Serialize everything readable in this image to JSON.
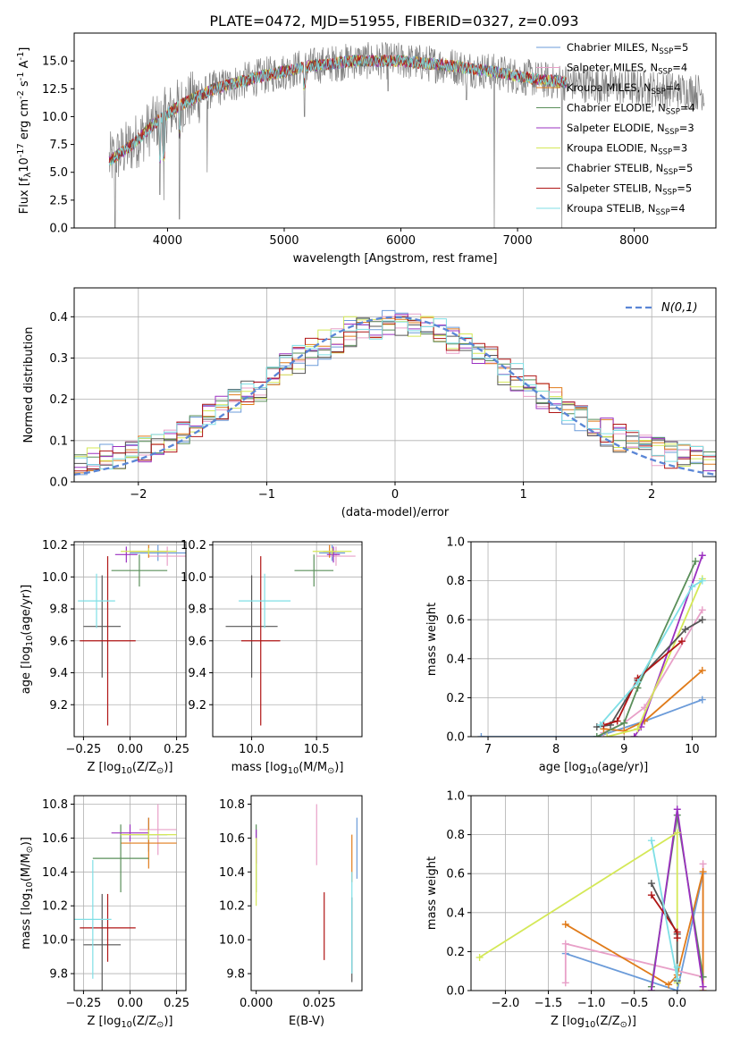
{
  "figure_title": "PLATE=0472, MJD=51955, FIBERID=0327, z=0.093",
  "models": [
    {
      "name": "Chabrier MILES, N$_{SSP}$=5",
      "imf": "Chabrier",
      "lib": "MILES",
      "nssp": "5",
      "color": "#6b9bd9"
    },
    {
      "name": "Salpeter MILES, N$_{SSP}$=4",
      "imf": "Salpeter",
      "lib": "MILES",
      "nssp": "4",
      "color": "#e8a0c8"
    },
    {
      "name": "Kroupa MILES, N$_{SSP}$=4",
      "imf": "Kroupa",
      "lib": "MILES",
      "nssp": "4",
      "color": "#e07b1a"
    },
    {
      "name": "Chabrier ELODIE, N$_{SSP}$=4",
      "imf": "Chabrier",
      "lib": "ELODIE",
      "nssp": "4",
      "color": "#5a8f5a"
    },
    {
      "name": "Salpeter ELODIE, N$_{SSP}$=3",
      "imf": "Salpeter",
      "lib": "ELODIE",
      "nssp": "3",
      "color": "#9b30c0"
    },
    {
      "name": "Kroupa ELODIE, N$_{SSP}$=3",
      "imf": "Kroupa",
      "lib": "ELODIE",
      "nssp": "3",
      "color": "#d4e857"
    },
    {
      "name": "Chabrier STELIB, N$_{SSP}$=5",
      "imf": "Chabrier",
      "lib": "STELIB",
      "nssp": "5",
      "color": "#555555"
    },
    {
      "name": "Salpeter STELIB, N$_{SSP}$=5",
      "imf": "Salpeter",
      "lib": "STELIB",
      "nssp": "5",
      "color": "#b01515"
    },
    {
      "name": "Kroupa STELIB, N$_{SSP}$=4",
      "imf": "Kroupa",
      "lib": "STELIB",
      "nssp": "4",
      "color": "#7fdfe6"
    }
  ],
  "chart_data": [
    {
      "id": "spectrum",
      "type": "line",
      "xlabel": "wavelength [Angstrom, rest frame]",
      "ylabel": "Flux [f$_\\lambda$10$^{-17}$ erg cm$^{-2}$ s$^{-1}$ A$^{-1}$]",
      "xlim": [
        3200,
        8700
      ],
      "ylim": [
        0,
        17.5
      ],
      "xticks": [
        4000,
        5000,
        6000,
        7000,
        8000
      ],
      "yticks": [
        0.0,
        2.5,
        5.0,
        7.5,
        10.0,
        12.5,
        15.0
      ],
      "grid": false,
      "legend": "upper right",
      "data_color": "#808080",
      "x_range_data": [
        3500,
        8600
      ],
      "x_range_model": [
        3500,
        7420
      ],
      "continuum": [
        [
          3500,
          6.0
        ],
        [
          3700,
          7.5
        ],
        [
          3900,
          9.5
        ],
        [
          4100,
          11.0
        ],
        [
          4400,
          12.5
        ],
        [
          4800,
          13.6
        ],
        [
          5200,
          14.5
        ],
        [
          5600,
          15.0
        ],
        [
          6000,
          15.0
        ],
        [
          6400,
          14.6
        ],
        [
          6800,
          14.0
        ],
        [
          7200,
          13.3
        ],
        [
          7600,
          12.9
        ],
        [
          8000,
          12.6
        ],
        [
          8600,
          12.2
        ]
      ],
      "data_dips": [
        [
          3550,
          0.0
        ],
        [
          3934,
          3.0
        ],
        [
          3968,
          2.5
        ],
        [
          4102,
          0.8
        ],
        [
          4340,
          5.0
        ],
        [
          5175,
          10.0
        ],
        [
          5890,
          12.3
        ],
        [
          6563,
          11.5
        ],
        [
          6800,
          0.0
        ],
        [
          7380,
          0.0
        ]
      ]
    },
    {
      "id": "residuals",
      "type": "histogram",
      "xlabel": "(data-model)/error",
      "ylabel": "Normed distribution",
      "xlim": [
        -2.5,
        2.5
      ],
      "ylim": [
        0.0,
        0.47
      ],
      "xticks": [
        -2,
        -1,
        0,
        1,
        2
      ],
      "yticks": [
        0.0,
        0.1,
        0.2,
        0.3,
        0.4
      ],
      "grid": true,
      "legend_label": "$\\mathcal{N}(0,1)$",
      "gauss_color": "#5a86d6",
      "bin_width": 0.1
    },
    {
      "id": "age_vs_Z",
      "type": "scatter",
      "xlabel": "Z [log$_{10}$(Z/Z$_\\odot$)]",
      "ylabel": "age  [log$_{10}$(age/yr)]",
      "xlim": [
        -0.3,
        0.3
      ],
      "ylim": [
        9.0,
        10.22
      ],
      "xticks": [
        -0.25,
        0.0,
        0.25
      ],
      "yticks": [
        9.2,
        9.4,
        9.6,
        9.8,
        10.0,
        10.2
      ],
      "grid": true,
      "points": [
        {
          "m": 0,
          "x": 0.15,
          "y": 10.15,
          "ex": 0.15,
          "ey": 0.05
        },
        {
          "m": 1,
          "x": 0.2,
          "y": 10.13,
          "ex": 0.1,
          "ey": 0.06
        },
        {
          "m": 2,
          "x": 0.1,
          "y": 10.16,
          "ex": 0.1,
          "ey": 0.04
        },
        {
          "m": 3,
          "x": 0.05,
          "y": 10.04,
          "ex": 0.15,
          "ey": 0.1
        },
        {
          "m": 4,
          "x": -0.02,
          "y": 10.14,
          "ex": 0.06,
          "ey": 0.05
        },
        {
          "m": 5,
          "x": 0.1,
          "y": 10.16,
          "ex": 0.15,
          "ey": 0.02
        },
        {
          "m": 6,
          "x": -0.15,
          "y": 9.69,
          "ex": 0.1,
          "ey": 0.32
        },
        {
          "m": 7,
          "x": -0.12,
          "y": 9.6,
          "ex": 0.15,
          "ey": 0.53
        },
        {
          "m": 8,
          "x": -0.18,
          "y": 9.85,
          "ex": 0.1,
          "ey": 0.17
        }
      ]
    },
    {
      "id": "age_vs_mass",
      "type": "scatter",
      "xlabel": "mass [log$_{10}$(M/M$_\\odot$)]",
      "ylabel": "",
      "xlim": [
        9.7,
        10.85
      ],
      "ylim": [
        9.0,
        10.22
      ],
      "xticks": [
        10.0,
        10.5
      ],
      "yticks": [
        9.2,
        9.4,
        9.6,
        9.8,
        10.0,
        10.2
      ],
      "grid": true,
      "points": [
        {
          "m": 0,
          "x": 10.62,
          "y": 10.15,
          "ex": 0.1,
          "ey": 0.05
        },
        {
          "m": 1,
          "x": 10.65,
          "y": 10.13,
          "ex": 0.15,
          "ey": 0.06
        },
        {
          "m": 2,
          "x": 10.6,
          "y": 10.16,
          "ex": 0.05,
          "ey": 0.04
        },
        {
          "m": 3,
          "x": 10.48,
          "y": 10.04,
          "ex": 0.15,
          "ey": 0.1
        },
        {
          "m": 4,
          "x": 10.63,
          "y": 10.14,
          "ex": 0.05,
          "ey": 0.05
        },
        {
          "m": 5,
          "x": 10.62,
          "y": 10.16,
          "ex": 0.15,
          "ey": 0.02
        },
        {
          "m": 6,
          "x": 10.0,
          "y": 9.69,
          "ex": 0.2,
          "ey": 0.32
        },
        {
          "m": 7,
          "x": 10.07,
          "y": 9.6,
          "ex": 0.15,
          "ey": 0.53
        },
        {
          "m": 8,
          "x": 10.1,
          "y": 9.85,
          "ex": 0.2,
          "ey": 0.17
        }
      ]
    },
    {
      "id": "weight_vs_age",
      "type": "line",
      "xlabel": "age  [log$_{10}$(age/yr)]",
      "ylabel": "mass weight",
      "xlim": [
        6.75,
        10.35
      ],
      "ylim": [
        0.0,
        1.0
      ],
      "xticks": [
        7,
        8,
        9,
        10
      ],
      "yticks": [
        0.0,
        0.2,
        0.4,
        0.6,
        0.8,
        1.0
      ],
      "grid": true,
      "series": [
        {
          "m": 0,
          "x": [
            6.9,
            8.6,
            9.3,
            10.15
          ],
          "y": [
            0.0,
            0.0,
            0.08,
            0.19
          ]
        },
        {
          "m": 1,
          "x": [
            8.7,
            9.0,
            9.3,
            10.15
          ],
          "y": [
            0.02,
            0.07,
            0.15,
            0.65
          ]
        },
        {
          "m": 2,
          "x": [
            8.7,
            9.0,
            9.3,
            10.15
          ],
          "y": [
            0.04,
            0.03,
            0.08,
            0.34
          ]
        },
        {
          "m": 3,
          "x": [
            8.6,
            9.0,
            9.2,
            10.05
          ],
          "y": [
            0.0,
            0.07,
            0.25,
            0.9
          ]
        },
        {
          "m": 4,
          "x": [
            9.15,
            9.25,
            10.15
          ],
          "y": [
            0.0,
            0.05,
            0.93
          ]
        },
        {
          "m": 5,
          "x": [
            8.75,
            9.2,
            10.15
          ],
          "y": [
            0.0,
            0.04,
            0.81
          ]
        },
        {
          "m": 6,
          "x": [
            8.6,
            8.8,
            9.2,
            9.9,
            10.15
          ],
          "y": [
            0.05,
            0.06,
            0.29,
            0.55,
            0.6
          ]
        },
        {
          "m": 7,
          "x": [
            8.7,
            8.9,
            9.2,
            9.85
          ],
          "y": [
            0.06,
            0.08,
            0.3,
            0.49
          ]
        },
        {
          "m": 8,
          "x": [
            8.65,
            9.2,
            10.0,
            10.15
          ],
          "y": [
            0.06,
            0.28,
            0.77,
            0.8
          ]
        }
      ]
    },
    {
      "id": "mass_vs_Z",
      "type": "scatter",
      "xlabel": "Z [log$_{10}$(Z/Z$_\\odot$)]",
      "ylabel": "mass [log$_{10}$(M/M$_\\odot$)]",
      "xlim": [
        -0.3,
        0.3
      ],
      "ylim": [
        9.7,
        10.85
      ],
      "xticks": [
        -0.25,
        0.0,
        0.25
      ],
      "yticks": [
        9.8,
        10.0,
        10.2,
        10.4,
        10.6,
        10.8
      ],
      "grid": true,
      "points": [
        {
          "m": 0,
          "x": 0.1,
          "y": 10.62,
          "ex": 0.1,
          "ey": 0.1
        },
        {
          "m": 1,
          "x": 0.15,
          "y": 10.65,
          "ex": 0.1,
          "ey": 0.15
        },
        {
          "m": 2,
          "x": 0.1,
          "y": 10.57,
          "ex": 0.15,
          "ey": 0.15
        },
        {
          "m": 3,
          "x": -0.05,
          "y": 10.48,
          "ex": 0.15,
          "ey": 0.2
        },
        {
          "m": 4,
          "x": 0.0,
          "y": 10.63,
          "ex": 0.1,
          "ey": 0.05
        },
        {
          "m": 5,
          "x": 0.1,
          "y": 10.62,
          "ex": 0.15,
          "ey": 0.03
        },
        {
          "m": 6,
          "x": -0.15,
          "y": 9.97,
          "ex": 0.1,
          "ey": 0.3
        },
        {
          "m": 7,
          "x": -0.12,
          "y": 10.07,
          "ex": 0.15,
          "ey": 0.2
        },
        {
          "m": 8,
          "x": -0.2,
          "y": 10.12,
          "ex": 0.1,
          "ey": 0.35
        }
      ]
    },
    {
      "id": "mass_vs_ebv",
      "type": "errorbar",
      "xlabel": "E(B-V)",
      "ylabel": "",
      "xlim": [
        -0.002,
        0.042
      ],
      "ylim": [
        9.7,
        10.85
      ],
      "xticks": [
        0.0,
        0.025
      ],
      "yticks": [
        9.8,
        10.0,
        10.2,
        10.4,
        10.6,
        10.8
      ],
      "grid": false,
      "points": [
        {
          "m": 0,
          "x": 0.04,
          "y": 10.54,
          "ey": 0.18
        },
        {
          "m": 1,
          "x": 0.024,
          "y": 10.62,
          "ey": 0.18
        },
        {
          "m": 2,
          "x": 0.038,
          "y": 10.48,
          "ey": 0.14
        },
        {
          "m": 3,
          "x": 0.0,
          "y": 10.48,
          "ey": 0.2
        },
        {
          "m": 4,
          "x": 0.0,
          "y": 10.55,
          "ey": 0.1
        },
        {
          "m": 5,
          "x": 0.0,
          "y": 10.4,
          "ey": 0.2
        },
        {
          "m": 6,
          "x": 0.038,
          "y": 10.0,
          "ey": 0.25
        },
        {
          "m": 7,
          "x": 0.027,
          "y": 10.08,
          "ey": 0.2
        },
        {
          "m": 8,
          "x": 0.038,
          "y": 10.1,
          "ey": 0.3
        }
      ]
    },
    {
      "id": "weight_vs_Z",
      "type": "line",
      "xlabel": "Z [log$_{10}$(Z/Z$_\\odot$)]",
      "ylabel": "mass weight",
      "xlim": [
        -2.4,
        0.45
      ],
      "ylim": [
        0.0,
        1.0
      ],
      "xticks": [
        -2.0,
        -1.5,
        -1.0,
        -0.5,
        0.0
      ],
      "yticks": [
        0.0,
        0.2,
        0.4,
        0.6,
        0.8,
        1.0
      ],
      "grid": true,
      "series": [
        {
          "m": 0,
          "x": [
            -1.3,
            0.0,
            0.3
          ],
          "y": [
            0.19,
            0.0,
            0.6
          ]
        },
        {
          "m": 1,
          "x": [
            -1.3,
            -1.3,
            0.3,
            0.3
          ],
          "y": [
            0.04,
            0.24,
            0.07,
            0.65
          ]
        },
        {
          "m": 2,
          "x": [
            -1.3,
            -0.1,
            0.0,
            0.3,
            0.3
          ],
          "y": [
            0.34,
            0.03,
            0.08,
            0.61,
            0.0
          ]
        },
        {
          "m": 3,
          "x": [
            -0.3,
            0.0,
            0.3
          ],
          "y": [
            0.02,
            0.9,
            0.07
          ]
        },
        {
          "m": 4,
          "x": [
            -0.3,
            0.0,
            0.3
          ],
          "y": [
            0.0,
            0.93,
            0.02
          ]
        },
        {
          "m": 5,
          "x": [
            -2.3,
            0.0,
            0.0
          ],
          "y": [
            0.17,
            0.81,
            0.04
          ]
        },
        {
          "m": 6,
          "x": [
            -0.3,
            0.0,
            0.0
          ],
          "y": [
            0.55,
            0.29,
            0.05
          ]
        },
        {
          "m": 7,
          "x": [
            -0.3,
            0.0,
            0.0
          ],
          "y": [
            0.49,
            0.3,
            0.27
          ]
        },
        {
          "m": 8,
          "x": [
            -0.3,
            0.0,
            0.0
          ],
          "y": [
            0.77,
            0.06,
            0.12
          ]
        }
      ]
    }
  ]
}
